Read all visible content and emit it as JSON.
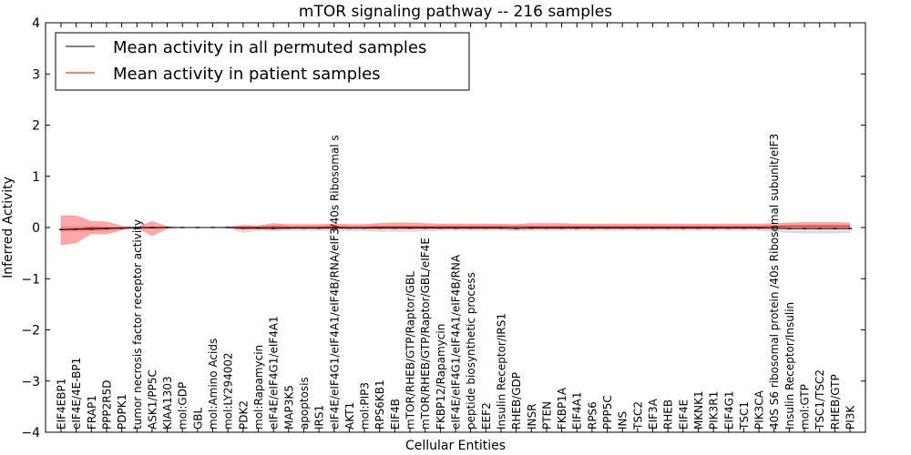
{
  "chart_data": {
    "type": "line",
    "title": "mTOR signaling pathway -- 216 samples",
    "xlabel": "Cellular Entities",
    "ylabel": "Inferred Activity",
    "ylim": [
      -4,
      4
    ],
    "yticks": [
      4,
      3,
      2,
      1,
      0,
      -1,
      -2,
      -3,
      -4
    ],
    "ytick_labels": [
      "4",
      "3",
      "2",
      "1",
      "0",
      "−1",
      "−2",
      "−3",
      "−4"
    ],
    "grid": false,
    "legend_position": "top-left",
    "categories": [
      "EIF4EBP1",
      "eIF4E/4E-BP1",
      "FRAP1",
      "PPP2R5D",
      "PDPK1",
      "tumor necrosis factor receptor activity",
      "ASK1/PP5C",
      "KIAA1303",
      "mol:GDP",
      "GBL",
      "mol:Amino Acids",
      "mol:LY294002",
      "PDK2",
      "mol:Rapamycin",
      "eIF4E/eIF4G1/eIF4A1",
      "MAP3K5",
      "apoptosis",
      "IRS1",
      "eIF4E/eIF4G1/eIF4A1/eIF4B/RNA/eIF3/40s Ribosomal s",
      "AKT1",
      "mol:PIP3",
      "RPS6KB1",
      "EIF4B",
      "mTOR/RHEB/GTP/Raptor/GBL",
      "mTOR/RHEB/GTP/Raptor/GBL/eIF4E",
      "FKBP12/Rapamycin",
      "eIF4E/eIF4G1/eIF4A1/eIF4B/RNA",
      "peptide biosynthetic process",
      "EEF2",
      "Insulin Receptor/IRS1",
      "RHEB/GDP",
      "INSR",
      "PTEN",
      "FKBP1A",
      "EIF4A1",
      "RPS6",
      "PPP5C",
      "INS",
      "TSC2",
      "EIF3A",
      "RHEB",
      "EIF4E",
      "MKNK1",
      "PIK3R1",
      "EIF4G1",
      "TSC1",
      "PIK3CA",
      "40S S6 ribosomal protein /40s Ribosomal subunit/eIF3",
      "Insulin Receptor/Insulin",
      "mol:GTP",
      "TSC1/TSC2",
      "RHEB/GTP",
      "PI3K"
    ],
    "series": [
      {
        "name": "Mean activity in all permuted samples",
        "color": "#000000",
        "values": [
          -0.04,
          -0.03,
          -0.03,
          -0.02,
          -0.01,
          0,
          0,
          0,
          0,
          0,
          0,
          0,
          -0.01,
          -0.01,
          -0.02,
          -0.01,
          -0.01,
          -0.01,
          -0.01,
          -0.01,
          -0.01,
          -0.01,
          -0.01,
          -0.01,
          -0.01,
          -0.01,
          -0.01,
          -0.01,
          -0.01,
          -0.01,
          -0.02,
          -0.01,
          -0.01,
          -0.01,
          -0.01,
          -0.01,
          -0.01,
          -0.01,
          -0.01,
          -0.01,
          -0.01,
          -0.01,
          -0.01,
          -0.01,
          -0.01,
          -0.01,
          -0.01,
          -0.01,
          -0.02,
          -0.02,
          -0.02,
          -0.02,
          -0.02
        ],
        "band_low": [
          -0.08,
          -0.07,
          -0.07,
          -0.06,
          -0.04,
          -0.02,
          -0.01,
          -0.01,
          0,
          0,
          0,
          -0.02,
          -0.1,
          -0.06,
          -0.07,
          -0.06,
          -0.06,
          -0.06,
          -0.06,
          -0.07,
          -0.07,
          -0.08,
          -0.08,
          -0.08,
          -0.07,
          -0.06,
          -0.06,
          -0.06,
          -0.06,
          -0.06,
          -0.07,
          -0.06,
          -0.06,
          -0.06,
          -0.06,
          -0.06,
          -0.06,
          -0.06,
          -0.06,
          -0.06,
          -0.06,
          -0.06,
          -0.06,
          -0.06,
          -0.06,
          -0.06,
          -0.06,
          -0.08,
          -0.1,
          -0.11,
          -0.11,
          -0.11,
          -0.1
        ],
        "band_high": [
          0.02,
          0.02,
          0.02,
          0.01,
          0.01,
          0.01,
          0.01,
          0.01,
          0,
          0,
          0,
          0.01,
          0.04,
          0.02,
          0.03,
          0.03,
          0.03,
          0.03,
          0.03,
          0.03,
          0.03,
          0.03,
          0.03,
          0.03,
          0.03,
          0.03,
          0.03,
          0.03,
          0.03,
          0.03,
          0.02,
          0.03,
          0.03,
          0.03,
          0.03,
          0.03,
          0.03,
          0.03,
          0.03,
          0.03,
          0.03,
          0.03,
          0.03,
          0.03,
          0.03,
          0.03,
          0.03,
          0.03,
          0.03,
          0.03,
          0.03,
          0.03,
          0.03
        ]
      },
      {
        "name": "Mean activity in patient samples",
        "color": "#ff0000",
        "values": [
          -0.04,
          -0.04,
          0,
          -0.01,
          -0.01,
          0,
          -0.01,
          0,
          0,
          0,
          0,
          0,
          0,
          0,
          0.01,
          0,
          0,
          0,
          0.01,
          0,
          0,
          0.01,
          0.01,
          0.01,
          0.01,
          0.01,
          0.01,
          0.01,
          0.01,
          0.01,
          0.01,
          0.01,
          0.01,
          0.01,
          0.01,
          0.01,
          0.01,
          0.01,
          0.01,
          0.01,
          0.01,
          0.01,
          0.01,
          0.01,
          0.01,
          0.01,
          0.01,
          0.02,
          0.03,
          0.03,
          0.03,
          0.03,
          0.03
        ],
        "band_low": [
          -0.34,
          -0.3,
          -0.12,
          -0.13,
          -0.05,
          0,
          -0.16,
          -0.02,
          0,
          0,
          0,
          0,
          -0.04,
          -0.03,
          -0.03,
          -0.02,
          -0.02,
          -0.02,
          -0.02,
          -0.02,
          -0.02,
          -0.02,
          -0.02,
          -0.02,
          -0.02,
          -0.02,
          -0.02,
          -0.02,
          -0.02,
          -0.02,
          -0.02,
          -0.02,
          -0.02,
          -0.02,
          -0.02,
          -0.02,
          -0.02,
          -0.02,
          -0.02,
          -0.02,
          -0.02,
          -0.02,
          -0.02,
          -0.02,
          -0.02,
          -0.02,
          -0.02,
          -0.02,
          -0.02,
          -0.01,
          -0.01,
          -0.01,
          -0.01
        ],
        "band_high": [
          0.23,
          0.23,
          0.12,
          0.11,
          0.03,
          0,
          0.12,
          0.02,
          0,
          0,
          0,
          0.01,
          0.04,
          0.03,
          0.08,
          0.06,
          0.06,
          0.06,
          0.07,
          0.06,
          0.06,
          0.08,
          0.09,
          0.09,
          0.08,
          0.07,
          0.07,
          0.07,
          0.07,
          0.07,
          0.06,
          0.08,
          0.08,
          0.08,
          0.07,
          0.07,
          0.07,
          0.07,
          0.07,
          0.07,
          0.07,
          0.07,
          0.07,
          0.07,
          0.07,
          0.07,
          0.07,
          0.08,
          0.09,
          0.1,
          0.1,
          0.1,
          0.09
        ]
      }
    ]
  }
}
